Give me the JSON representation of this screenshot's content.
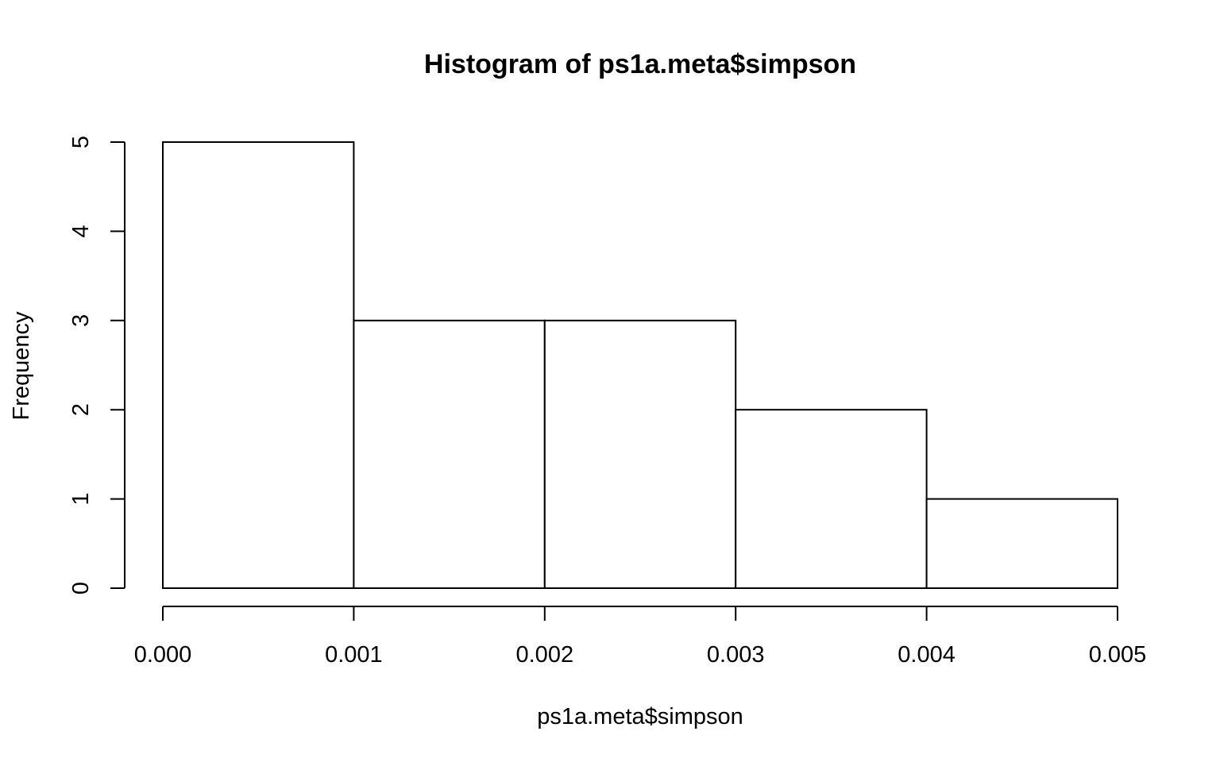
{
  "chart_data": {
    "type": "bar",
    "title": "Histogram of ps1a.meta$simpson",
    "xlabel": "ps1a.meta$simpson",
    "ylabel": "Frequency",
    "bin_edges": [
      0.0,
      0.001,
      0.002,
      0.003,
      0.004,
      0.005
    ],
    "categories": [
      "0.000-0.001",
      "0.001-0.002",
      "0.002-0.003",
      "0.003-0.004",
      "0.004-0.005"
    ],
    "values": [
      5,
      3,
      3,
      2,
      1
    ],
    "xlim": [
      0.0,
      0.005
    ],
    "ylim": [
      0,
      5
    ],
    "x_ticks": [
      "0.000",
      "0.001",
      "0.002",
      "0.003",
      "0.004",
      "0.005"
    ],
    "y_ticks": [
      "0",
      "1",
      "2",
      "3",
      "4",
      "5"
    ],
    "grid": false,
    "bar_fill": "#ffffff",
    "bar_stroke": "#000000"
  }
}
